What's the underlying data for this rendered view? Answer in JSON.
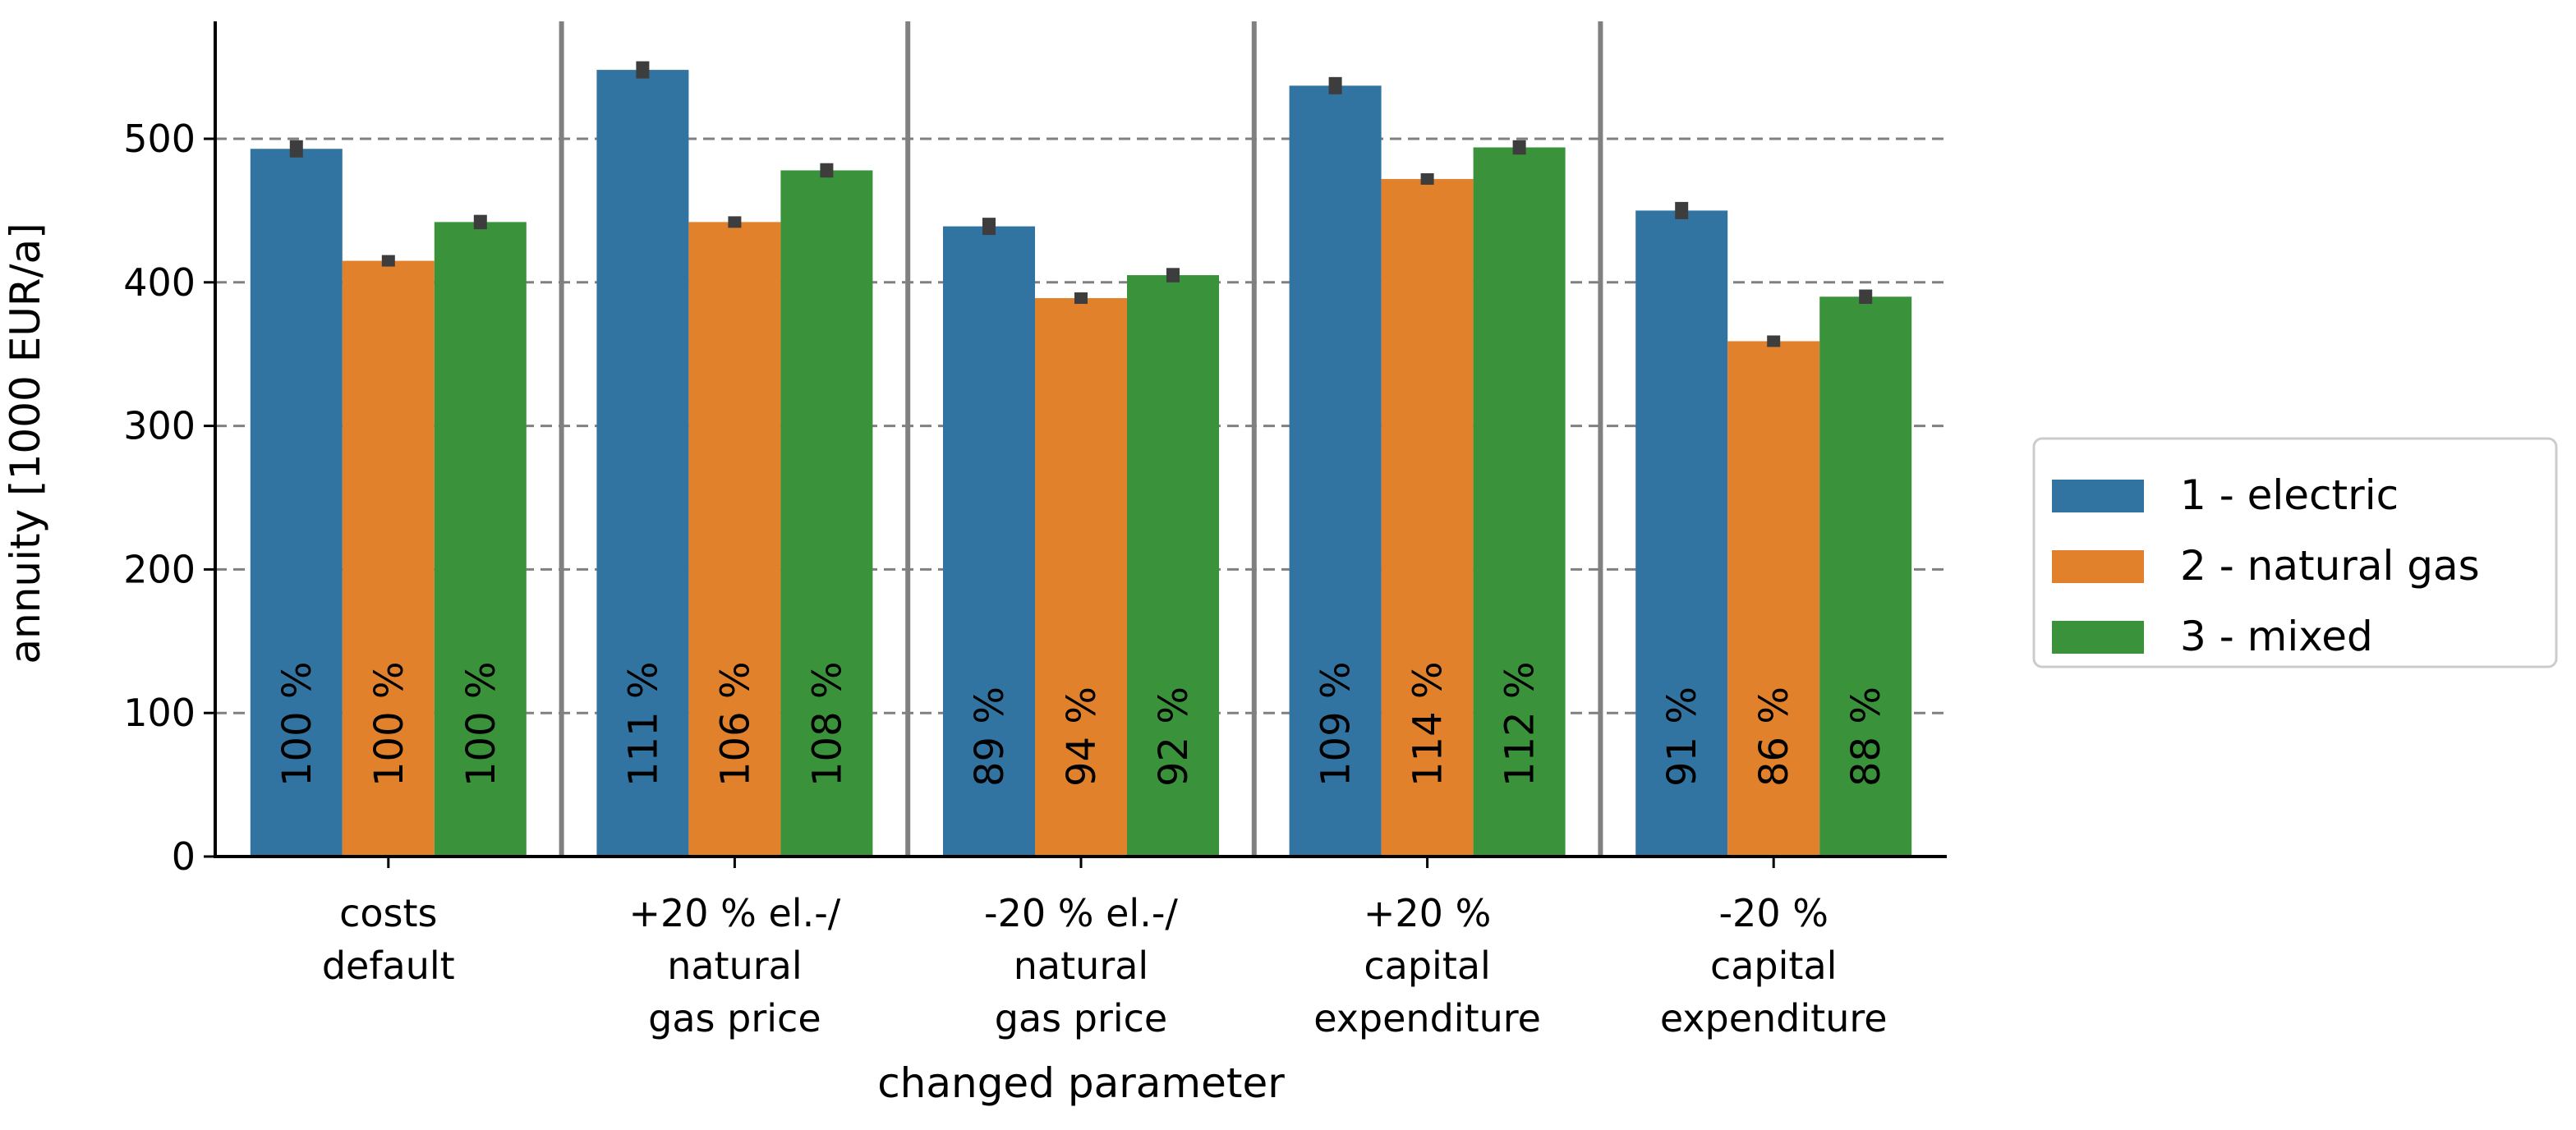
{
  "chart_data": {
    "type": "bar",
    "xlabel": "changed parameter",
    "ylabel": "annuity [1000 EUR/a]",
    "ylim": [
      0,
      580
    ],
    "yticks": [
      0,
      100,
      200,
      300,
      400,
      500
    ],
    "grid": "horizontal dashed",
    "legend_position": "right",
    "categories": [
      [
        "costs",
        "default"
      ],
      [
        "+20 % el.-/",
        "natural",
        "gas price"
      ],
      [
        "-20 % el.-/",
        "natural",
        "gas price"
      ],
      [
        "+20 %",
        "capital",
        "expenditure"
      ],
      [
        "-20 %",
        "capital",
        "expenditure"
      ]
    ],
    "series": [
      {
        "name": "1 - electric",
        "color": "#3274a1",
        "values": [
          493,
          548,
          439,
          537,
          450
        ],
        "errors": [
          6,
          6,
          6,
          6,
          6
        ],
        "labels": [
          "100 %",
          "111 %",
          "89 %",
          "109 %",
          "91 %"
        ]
      },
      {
        "name": "2 - natural gas",
        "color": "#e1812c",
        "values": [
          415,
          442,
          389,
          472,
          359
        ],
        "errors": [
          4,
          4,
          4,
          4,
          4
        ],
        "labels": [
          "100 %",
          "106 %",
          "94 %",
          "114 %",
          "86 %"
        ]
      },
      {
        "name": "3 - mixed",
        "color": "#3a923a",
        "values": [
          442,
          478,
          405,
          494,
          390
        ],
        "errors": [
          5,
          5,
          5,
          5,
          5
        ],
        "labels": [
          "100 %",
          "108 %",
          "92 %",
          "112 %",
          "88 %"
        ]
      }
    ]
  }
}
